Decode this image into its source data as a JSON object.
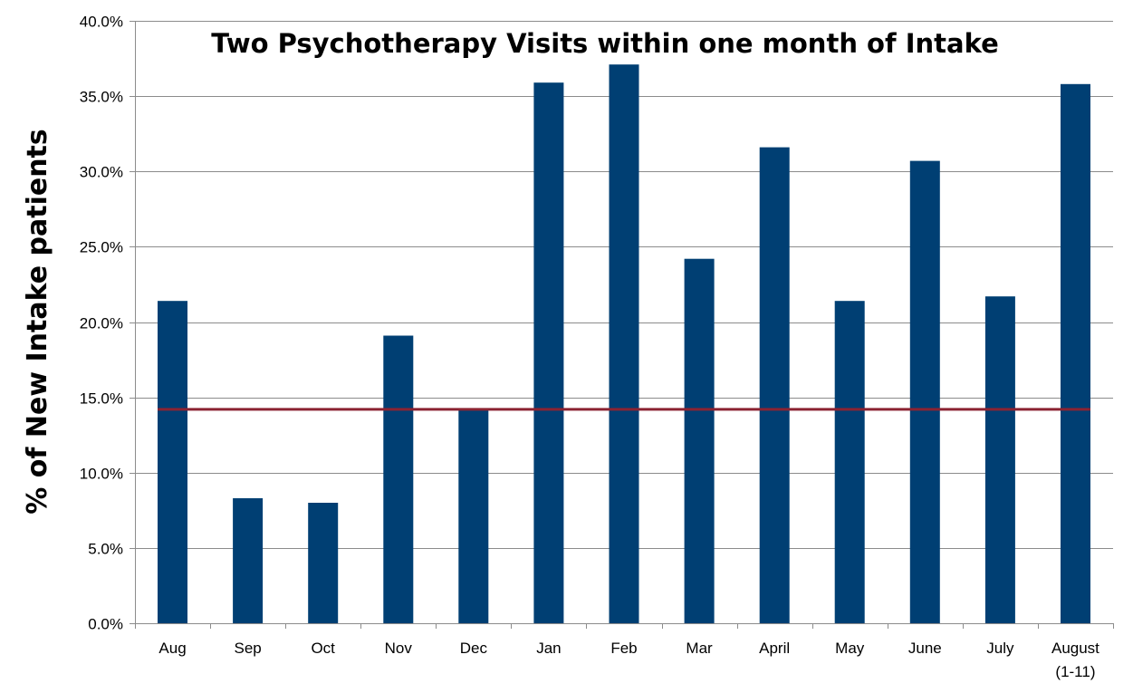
{
  "chart_data": {
    "type": "bar",
    "title": "Two Psychotherapy Visits within one month of Intake",
    "xlabel": "",
    "ylabel": "% of New Intake patients",
    "categories": [
      "Aug",
      "Sep",
      "Oct",
      "Nov",
      "Dec",
      "Jan",
      "Feb",
      "Mar",
      "April",
      "May",
      "June",
      "July",
      "August\n(1-11)"
    ],
    "series": [
      {
        "values": [
          21.4,
          8.3,
          8.0,
          19.1,
          14.2,
          35.9,
          37.1,
          24.2,
          31.6,
          21.4,
          30.7,
          21.7,
          35.8
        ],
        "color": "#003f73"
      }
    ],
    "reference_line": {
      "value": 14.2,
      "color": "#8b2332"
    },
    "ylim": [
      0,
      40
    ],
    "yticks": [
      0,
      5,
      10,
      15,
      20,
      25,
      30,
      35,
      40
    ],
    "ytick_labels": [
      "0.0%",
      "5.0%",
      "10.0%",
      "15.0%",
      "20.0%",
      "25.0%",
      "30.0%",
      "35.0%",
      "40.0%"
    ],
    "grid": true,
    "grid_color": "#8c8c8c",
    "legend": "none"
  }
}
